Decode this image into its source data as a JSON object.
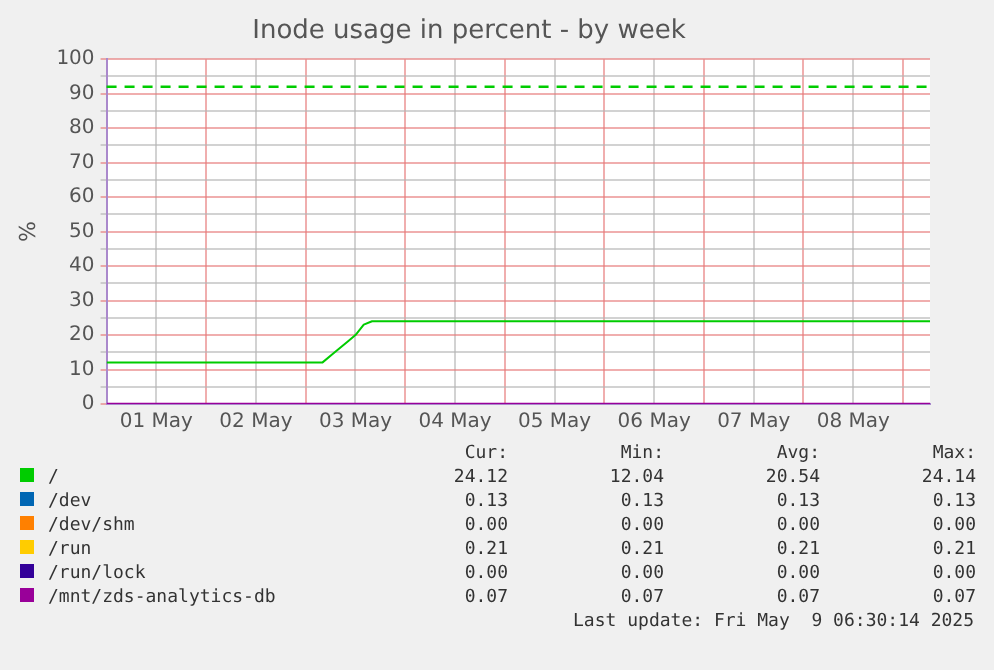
{
  "chart_data": {
    "type": "line",
    "title": "Inode usage in percent - by week",
    "ylabel": "%",
    "xlim": [
      "2025-05-01T00:00",
      "2025-05-09T06:30"
    ],
    "xticks": [
      {
        "value": "2025-05-01T00:00",
        "label": null
      },
      {
        "value": "2025-05-01T12:00",
        "label": "01 May"
      },
      {
        "value": "2025-05-02T00:00",
        "label": null
      },
      {
        "value": "2025-05-02T12:00",
        "label": "02 May"
      },
      {
        "value": "2025-05-03T00:00",
        "label": null
      },
      {
        "value": "2025-05-03T12:00",
        "label": "03 May"
      },
      {
        "value": "2025-05-04T00:00",
        "label": null
      },
      {
        "value": "2025-05-04T12:00",
        "label": "04 May"
      },
      {
        "value": "2025-05-05T00:00",
        "label": null
      },
      {
        "value": "2025-05-05T12:00",
        "label": "05 May"
      },
      {
        "value": "2025-05-06T00:00",
        "label": null
      },
      {
        "value": "2025-05-06T12:00",
        "label": "06 May"
      },
      {
        "value": "2025-05-07T00:00",
        "label": null
      },
      {
        "value": "2025-05-07T12:00",
        "label": "07 May"
      },
      {
        "value": "2025-05-08T00:00",
        "label": null
      },
      {
        "value": "2025-05-08T12:00",
        "label": "08 May"
      },
      {
        "value": "2025-05-09T00:00",
        "label": null
      }
    ],
    "ylim": [
      0,
      100
    ],
    "yticks": [
      0,
      {
        "value": 5,
        "label": null
      },
      10,
      {
        "value": 15,
        "label": null
      },
      20,
      {
        "value": 25,
        "label": null
      },
      30,
      {
        "value": 35,
        "label": null
      },
      40,
      {
        "value": 45,
        "label": null
      },
      50,
      {
        "value": 55,
        "label": null
      },
      60,
      {
        "value": 65,
        "label": null
      },
      70,
      {
        "value": 75,
        "label": null
      },
      80,
      {
        "value": 85,
        "label": null
      },
      90,
      {
        "value": 95,
        "label": null
      },
      100
    ],
    "grid": true,
    "legend": "bottom",
    "line_style": "solid",
    "marker": "none",
    "series": [
      {
        "name": "/",
        "color": "#00cc00",
        "x": [
          "2025-05-01T00:00",
          "2025-05-03T04:00",
          "2025-05-03T07:00",
          "2025-05-03T10:00",
          "2025-05-03T12:00",
          "2025-05-03T14:00",
          "2025-05-03T16:00",
          "2025-05-09T06:30"
        ],
        "values": [
          12,
          12,
          15,
          18,
          20,
          23,
          24,
          24
        ]
      },
      {
        "name": "/dev",
        "color": "#0066b3",
        "values": [
          null
        ]
      },
      {
        "name": "/dev/shm",
        "color": "#ff8000",
        "values": [
          null
        ]
      },
      {
        "name": "/run",
        "color": "#ffcc00",
        "values": [
          null
        ]
      },
      {
        "name": "/run/lock",
        "color": "#330099",
        "values": [
          null
        ]
      },
      {
        "name": "/mnt/zds-analytics-db",
        "color": "#990099",
        "x": [
          "2025-05-01T00:00",
          "2025-05-09T06:30"
        ],
        "values": [
          0.1,
          0.1
        ]
      }
    ],
    "ref_lines": [
      {
        "axis": "y",
        "value": 92,
        "color": "#00cc00",
        "line_style": "dashed"
      }
    ],
    "annotations": [
      "Cur:",
      "Min:",
      "Avg:",
      "Max:",
      "24.12",
      "12.04",
      "20.54",
      "24.14",
      "0.13",
      "0.13",
      "0.13",
      "0.13",
      "0.00",
      "0.00",
      "0.00",
      "0.00",
      "0.21",
      "0.21",
      "0.21",
      "0.21",
      "0.00",
      "0.00",
      "0.00",
      "0.00",
      "0.07",
      "0.07",
      "0.07",
      "0.07",
      "Last update: Fri May  9 06:30:14 2025"
    ]
  }
}
